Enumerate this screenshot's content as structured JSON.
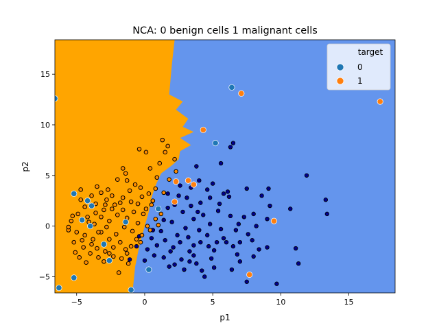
{
  "chart_data": {
    "type": "scatter",
    "title": "NCA: 0 benign cells 1 malignant cells",
    "xlabel": "p1",
    "ylabel": "p2",
    "xlim": [
      -6.6,
      18.4
    ],
    "ylim": [
      -6.6,
      18.4
    ],
    "x_ticks": [
      -5,
      0,
      5,
      10,
      15
    ],
    "y_ticks": [
      -5,
      0,
      5,
      10,
      15
    ],
    "grid": false,
    "legend": {
      "title": "target",
      "placement": "top-right",
      "entries": [
        {
          "label": "0",
          "color": "#1f77b4"
        },
        {
          "label": "1",
          "color": "#ff7f0e"
        }
      ]
    },
    "decision_regions": {
      "colors": {
        "class_1": "#ffa500",
        "class_0": "#6495ed"
      },
      "boundary": [
        [
          -6.6,
          18.4
        ],
        [
          2.2,
          18.4
        ],
        [
          2.0,
          16
        ],
        [
          1.8,
          13
        ],
        [
          2.8,
          12.3
        ],
        [
          2.3,
          11.5
        ],
        [
          3.2,
          10.6
        ],
        [
          2.8,
          9.8
        ],
        [
          3.6,
          9.3
        ],
        [
          2.6,
          8.7
        ],
        [
          3.4,
          8.0
        ],
        [
          2.6,
          7.4
        ],
        [
          2.5,
          6.6
        ],
        [
          2.0,
          6.0
        ],
        [
          1.2,
          5.2
        ],
        [
          0.8,
          4.0
        ],
        [
          0.5,
          2.8
        ],
        [
          0.3,
          1.4
        ],
        [
          0.0,
          0.0
        ],
        [
          -0.4,
          -2.0
        ],
        [
          -0.7,
          -4.0
        ],
        [
          -0.9,
          -6.6
        ],
        [
          -6.6,
          -6.6
        ]
      ]
    },
    "series": [
      {
        "name": "0",
        "color": "#1f77b4",
        "role": "true label (outer marker, white edge)",
        "points": [
          [
            -6.6,
            12.6
          ],
          [
            6.4,
            13.7
          ],
          [
            5.2,
            8.2
          ],
          [
            -5.2,
            3.2
          ],
          [
            -4.2,
            2.5
          ],
          [
            -3.9,
            2.0
          ],
          [
            -4.6,
            0.6
          ],
          [
            -4.0,
            0.0
          ],
          [
            -1.4,
            0.4
          ],
          [
            1.0,
            1.7
          ],
          [
            -3.0,
            -1.8
          ],
          [
            -2.6,
            -3.4
          ],
          [
            0.3,
            -4.3
          ],
          [
            -1.0,
            -6.3
          ],
          [
            -5.2,
            -5.1
          ],
          [
            -6.3,
            -6.1
          ]
        ]
      },
      {
        "name": "1",
        "color": "#ff7f0e",
        "role": "true label (outer marker, white edge)",
        "points": [
          [
            7.1,
            13.1
          ],
          [
            17.3,
            12.3
          ],
          [
            4.3,
            9.5
          ],
          [
            3.2,
            4.5
          ],
          [
            2.3,
            4.4
          ],
          [
            3.6,
            4.1
          ],
          [
            2.2,
            2.4
          ],
          [
            9.5,
            0.5
          ],
          [
            7.7,
            -4.8
          ]
        ]
      },
      {
        "name": "predicted 0",
        "color": "#00008b",
        "role": "predicted label (inner marker)",
        "points": [
          [
            6.5,
            8.2
          ],
          [
            6.3,
            7.8
          ],
          [
            3.8,
            5.9
          ],
          [
            5.6,
            6.2
          ],
          [
            4.0,
            4.5
          ],
          [
            2.6,
            4.0
          ],
          [
            4.6,
            3.6
          ],
          [
            3.4,
            3.8
          ],
          [
            5.8,
            3.2
          ],
          [
            7.5,
            3.7
          ],
          [
            9.1,
            3.7
          ],
          [
            11.9,
            5.0
          ],
          [
            8.6,
            3.0
          ],
          [
            9.2,
            2.0
          ],
          [
            10.7,
            1.7
          ],
          [
            13.3,
            2.6
          ],
          [
            13.4,
            1.2
          ],
          [
            7.3,
            0.9
          ],
          [
            8.0,
            1.2
          ],
          [
            9.0,
            0.7
          ],
          [
            5.4,
            1.5
          ],
          [
            6.3,
            1.0
          ],
          [
            4.8,
            0.2
          ],
          [
            6.7,
            -0.4
          ],
          [
            5.8,
            -1.2
          ],
          [
            8.2,
            0.0
          ],
          [
            6.5,
            -2.0
          ],
          [
            7.0,
            -1.6
          ],
          [
            8.0,
            -3.0
          ],
          [
            9.0,
            -2.1
          ],
          [
            11.1,
            -2.2
          ],
          [
            11.3,
            -3.7
          ],
          [
            9.7,
            -5.7
          ],
          [
            7.5,
            -5.5
          ],
          [
            6.4,
            -4.3
          ],
          [
            7.0,
            -3.5
          ],
          [
            5.1,
            -4.1
          ],
          [
            3.8,
            -3.7
          ],
          [
            4.4,
            -5.0
          ],
          [
            2.2,
            -3.8
          ],
          [
            2.7,
            -3.3
          ],
          [
            1.9,
            -2.5
          ],
          [
            3.3,
            -2.5
          ],
          [
            4.1,
            -1.6
          ],
          [
            5.1,
            -2.4
          ],
          [
            0.7,
            -2.9
          ],
          [
            0.0,
            -3.4
          ],
          [
            -1.1,
            -3.3
          ],
          [
            -0.6,
            -2.0
          ],
          [
            0.5,
            -1.2
          ],
          [
            1.5,
            -1.4
          ],
          [
            2.4,
            -0.9
          ],
          [
            3.0,
            -0.2
          ],
          [
            3.6,
            0.7
          ],
          [
            4.3,
            1.1
          ],
          [
            2.0,
            0.4
          ],
          [
            1.4,
            0.6
          ],
          [
            2.8,
            1.4
          ],
          [
            3.4,
            2.0
          ],
          [
            4.1,
            2.3
          ],
          [
            1.7,
            3.2
          ],
          [
            2.5,
            3.0
          ],
          [
            4.8,
            2.8
          ],
          [
            5.5,
            2.2
          ],
          [
            6.2,
            2.9
          ],
          [
            4.0,
            -0.4
          ],
          [
            4.6,
            -0.9
          ],
          [
            3.2,
            -1.1
          ],
          [
            2.6,
            -1.6
          ],
          [
            1.2,
            -0.5
          ],
          [
            0.9,
            -1.9
          ],
          [
            3.6,
            -2.9
          ],
          [
            4.9,
            -3.2
          ],
          [
            2.9,
            -4.3
          ],
          [
            1.4,
            -3.1
          ],
          [
            5.6,
            -0.3
          ],
          [
            5.3,
            -1.6
          ],
          [
            6.8,
            -2.8
          ],
          [
            7.9,
            -1.4
          ],
          [
            8.4,
            -2.3
          ],
          [
            1.7,
            1.8
          ],
          [
            2.2,
            2.1
          ],
          [
            5.0,
            4.2
          ],
          [
            6.1,
            3.4
          ],
          [
            3.1,
            2.8
          ],
          [
            3.9,
            1.4
          ],
          [
            4.7,
            -2.0
          ],
          [
            2.1,
            -2.1
          ],
          [
            0.2,
            -2.3
          ],
          [
            -0.4,
            -1.0
          ],
          [
            0.6,
            -0.4
          ],
          [
            1.8,
            -4.0
          ],
          [
            3.3,
            -3.5
          ],
          [
            4.2,
            -4.4
          ],
          [
            6.0,
            -1.6
          ],
          [
            7.6,
            -0.8
          ],
          [
            6.9,
            0.2
          ],
          [
            3.6,
            -1.9
          ]
        ]
      },
      {
        "name": "predicted 1",
        "color": "#ff8c00",
        "role": "predicted label (inner marker, black edge)",
        "points": [
          [
            1.3,
            8.5
          ],
          [
            1.7,
            7.9
          ],
          [
            1.5,
            7.3
          ],
          [
            -0.4,
            7.6
          ],
          [
            0.1,
            7.3
          ],
          [
            2.2,
            6.6
          ],
          [
            1.1,
            6.2
          ],
          [
            0.4,
            5.7
          ],
          [
            -1.6,
            5.7
          ],
          [
            -1.4,
            5.2
          ],
          [
            -2.0,
            4.6
          ],
          [
            -1.3,
            4.5
          ],
          [
            -0.7,
            4.1
          ],
          [
            -0.3,
            3.8
          ],
          [
            0.8,
            3.7
          ],
          [
            1.4,
            3.3
          ],
          [
            -4.7,
            3.6
          ],
          [
            -3.5,
            3.9
          ],
          [
            -2.7,
            3.6
          ],
          [
            -2.4,
            3.0
          ],
          [
            -3.2,
            3.3
          ],
          [
            -1.6,
            2.8
          ],
          [
            -0.2,
            2.9
          ],
          [
            0.6,
            2.5
          ],
          [
            -0.5,
            2.2
          ],
          [
            0.1,
            1.7
          ],
          [
            1.2,
            1.2
          ],
          [
            0.8,
            0.7
          ],
          [
            -0.8,
            1.4
          ],
          [
            -1.8,
            2.3
          ],
          [
            -2.8,
            2.6
          ],
          [
            -3.6,
            2.2
          ],
          [
            -4.4,
            1.9
          ],
          [
            -4.9,
            1.2
          ],
          [
            -5.4,
            0.5
          ],
          [
            -5.6,
            -0.4
          ],
          [
            -5.0,
            -0.6
          ],
          [
            -4.4,
            -0.9
          ],
          [
            -3.8,
            -1.3
          ],
          [
            -4.5,
            -2.1
          ],
          [
            -5.1,
            -2.6
          ],
          [
            -4.8,
            -3.1
          ],
          [
            -4.3,
            -3.6
          ],
          [
            -3.4,
            -3.1
          ],
          [
            -2.9,
            -2.5
          ],
          [
            -2.3,
            -3.0
          ],
          [
            -1.7,
            -3.2
          ],
          [
            -1.3,
            -2.7
          ],
          [
            -1.0,
            -2.0
          ],
          [
            -0.6,
            -1.3
          ],
          [
            -0.9,
            -0.5
          ],
          [
            -1.5,
            -0.1
          ],
          [
            -2.1,
            -0.8
          ],
          [
            -2.6,
            -1.3
          ],
          [
            -3.2,
            -0.6
          ],
          [
            -3.7,
            0.2
          ],
          [
            -3.2,
            0.9
          ],
          [
            -2.6,
            0.5
          ],
          [
            -2.0,
            1.1
          ],
          [
            -2.4,
            1.7
          ],
          [
            -3.0,
            1.6
          ],
          [
            -3.6,
            1.3
          ],
          [
            -4.2,
            0.9
          ],
          [
            -1.3,
            0.8
          ],
          [
            -0.5,
            0.3
          ],
          [
            0.2,
            0.0
          ],
          [
            -0.2,
            -0.9
          ],
          [
            -1.8,
            -1.6
          ],
          [
            -2.3,
            -2.1
          ],
          [
            -3.5,
            -2.2
          ],
          [
            -4.0,
            -2.7
          ],
          [
            -1.9,
            -4.6
          ],
          [
            -1.2,
            -3.7
          ],
          [
            -3.0,
            -3.5
          ],
          [
            -5.6,
            -0.1
          ],
          [
            -4.7,
            2.6
          ],
          [
            -1.1,
            3.5
          ],
          [
            -0.1,
            1.2
          ],
          [
            0.4,
            -0.4
          ],
          [
            -2.8,
            -0.1
          ],
          [
            -4.1,
            0.4
          ],
          [
            -3.4,
            -0.6
          ],
          [
            -2.2,
            2.1
          ],
          [
            -1.0,
            2.4
          ],
          [
            0.5,
            2.1
          ],
          [
            1.0,
            0.1
          ],
          [
            -0.3,
            -1.6
          ],
          [
            -1.4,
            -2.3
          ],
          [
            -2.6,
            -2.7
          ],
          [
            -3.9,
            -1.8
          ],
          [
            -4.6,
            -1.4
          ],
          [
            -5.2,
            -1.6
          ],
          [
            -5.3,
            1.0
          ],
          [
            -1.6,
            1.6
          ],
          [
            -2.9,
            2.1
          ],
          [
            -3.9,
            3.0
          ],
          [
            0.3,
            3.2
          ],
          [
            1.8,
            4.6
          ],
          [
            2.3,
            5.4
          ],
          [
            0.9,
            4.8
          ]
        ]
      }
    ]
  }
}
